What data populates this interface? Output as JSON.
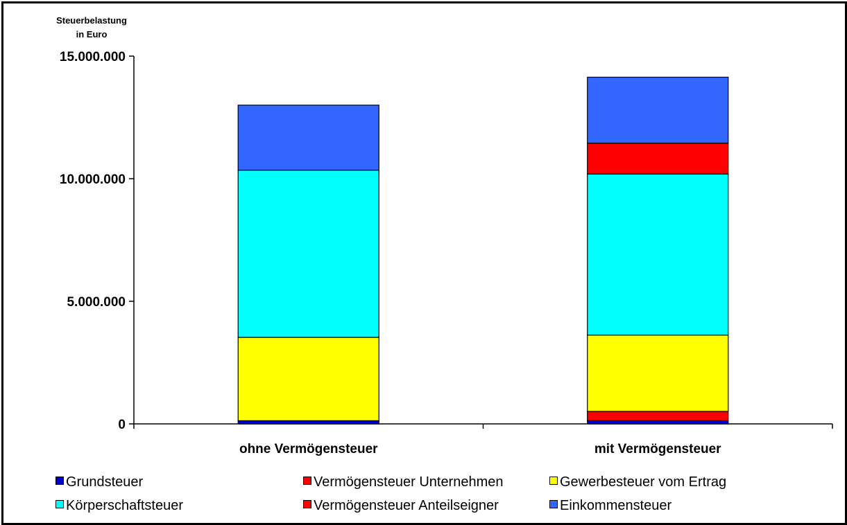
{
  "chart_data": {
    "type": "bar",
    "stacked": true,
    "ylabel": "Steuerbelastung in Euro",
    "ylabel_lines": [
      "Steuerbelastung",
      "in Euro"
    ],
    "ylim": [
      0,
      15000000
    ],
    "yticks": [
      0,
      5000000,
      10000000,
      15000000
    ],
    "ytick_labels": [
      "0",
      "5.000.000",
      "10.000.000",
      "15.000.000"
    ],
    "categories": [
      "ohne Vermögensteuer",
      "mit Vermögensteuer"
    ],
    "series": [
      {
        "name": "Grundsteuer",
        "color": "#0000cc",
        "values": [
          130000,
          130000
        ]
      },
      {
        "name": "Vermögensteuer Unternehmen",
        "color": "#ff0000",
        "values": [
          0,
          380000
        ]
      },
      {
        "name": "Gewerbesteuer vom Ertrag",
        "color": "#ffff00",
        "values": [
          3400000,
          3110000
        ]
      },
      {
        "name": "Körperschaftsteuer",
        "color": "#00ffff",
        "values": [
          6820000,
          6570000
        ]
      },
      {
        "name": "Vermögensteuer Anteilseigner",
        "color": "#ff0000",
        "values": [
          0,
          1260000
        ]
      },
      {
        "name": "Einkommensteuer",
        "color": "#3366ff",
        "values": [
          2650000,
          2690000
        ]
      }
    ],
    "legend_position": "bottom",
    "grid": false
  }
}
